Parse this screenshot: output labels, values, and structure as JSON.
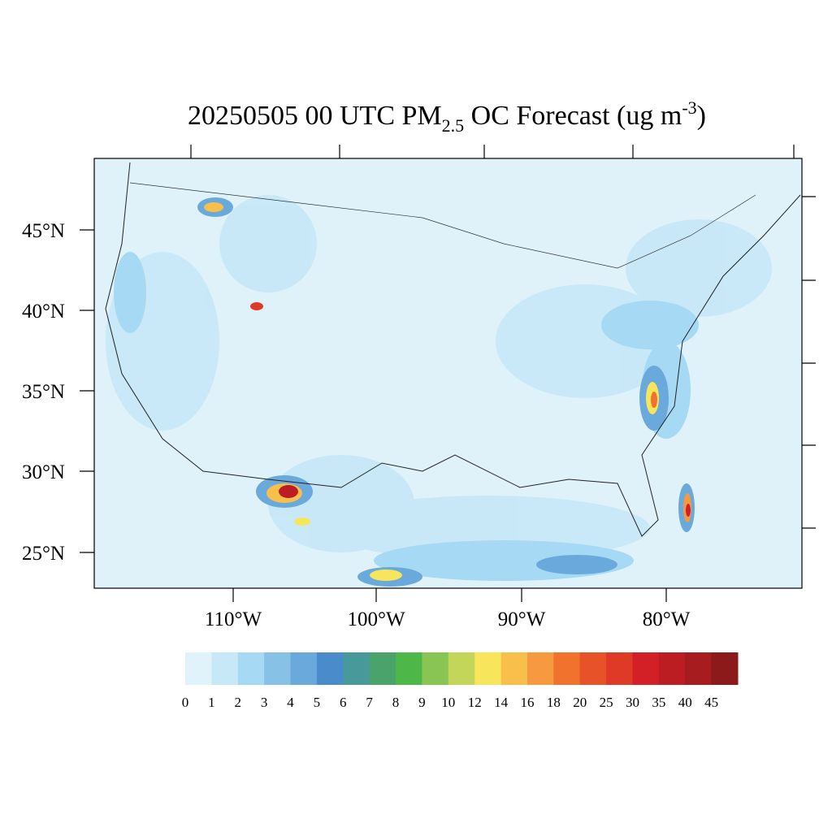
{
  "title": {
    "main": "20250505 00 UTC PM",
    "sub": "2.5",
    "rest": " OC Forecast (ug m",
    "sup": "-3",
    "end": ")"
  },
  "lat_labels": [
    "45°N",
    "40°N",
    "35°N",
    "30°N",
    "25°N"
  ],
  "lon_labels": [
    "110°W",
    "100°W",
    "90°W",
    "80°W"
  ],
  "colorbar": {
    "colors": [
      "#e0f3fb",
      "#c6e8f7",
      "#a6d9f3",
      "#87c1e6",
      "#6aa9db",
      "#4a8ccb",
      "#47999a",
      "#49a36a",
      "#4db848",
      "#88c553",
      "#c4d65a",
      "#f7e55b",
      "#f8bf4b",
      "#f6993f",
      "#f1722c",
      "#e85229",
      "#de3a26",
      "#d32027",
      "#bb1d23",
      "#a61c1f",
      "#8d1a1b"
    ],
    "levels": [
      0,
      1,
      2,
      3,
      4,
      5,
      6,
      7,
      8,
      9,
      10,
      12,
      14,
      16,
      18,
      20,
      25,
      30,
      35,
      40,
      45
    ]
  }
}
